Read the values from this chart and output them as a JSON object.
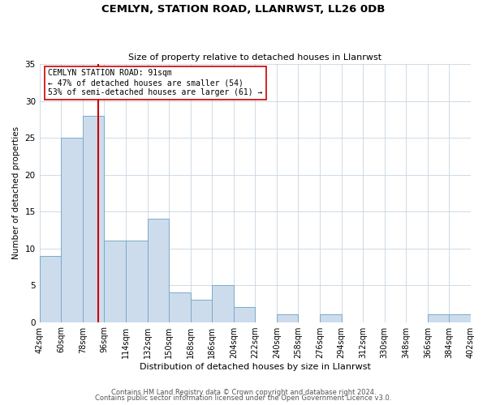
{
  "title": "CEMLYN, STATION ROAD, LLANRWST, LL26 0DB",
  "subtitle": "Size of property relative to detached houses in Llanrwst",
  "xlabel": "Distribution of detached houses by size in Llanrwst",
  "ylabel": "Number of detached properties",
  "bin_edges": [
    42,
    60,
    78,
    96,
    114,
    132,
    150,
    168,
    186,
    204,
    222,
    240,
    258,
    276,
    294,
    312,
    330,
    348,
    366,
    384,
    402
  ],
  "bar_heights": [
    9,
    25,
    28,
    11,
    11,
    14,
    4,
    3,
    5,
    2,
    0,
    1,
    0,
    1,
    0,
    0,
    0,
    0,
    1,
    1
  ],
  "bar_color": "#ccdcec",
  "bar_edgecolor": "#7aaac8",
  "ylim": [
    0,
    35
  ],
  "yticks": [
    0,
    5,
    10,
    15,
    20,
    25,
    30,
    35
  ],
  "vline_x": 91,
  "vline_color": "#cc0000",
  "annotation_title": "CEMLYN STATION ROAD: 91sqm",
  "annotation_line1": "← 47% of detached houses are smaller (54)",
  "annotation_line2": "53% of semi-detached houses are larger (61) →",
  "annotation_box_edgecolor": "#cc0000",
  "footer_line1": "Contains HM Land Registry data © Crown copyright and database right 2024.",
  "footer_line2": "Contains public sector information licensed under the Open Government Licence v3.0.",
  "bg_color": "#ffffff",
  "grid_color": "#c8d4e0"
}
